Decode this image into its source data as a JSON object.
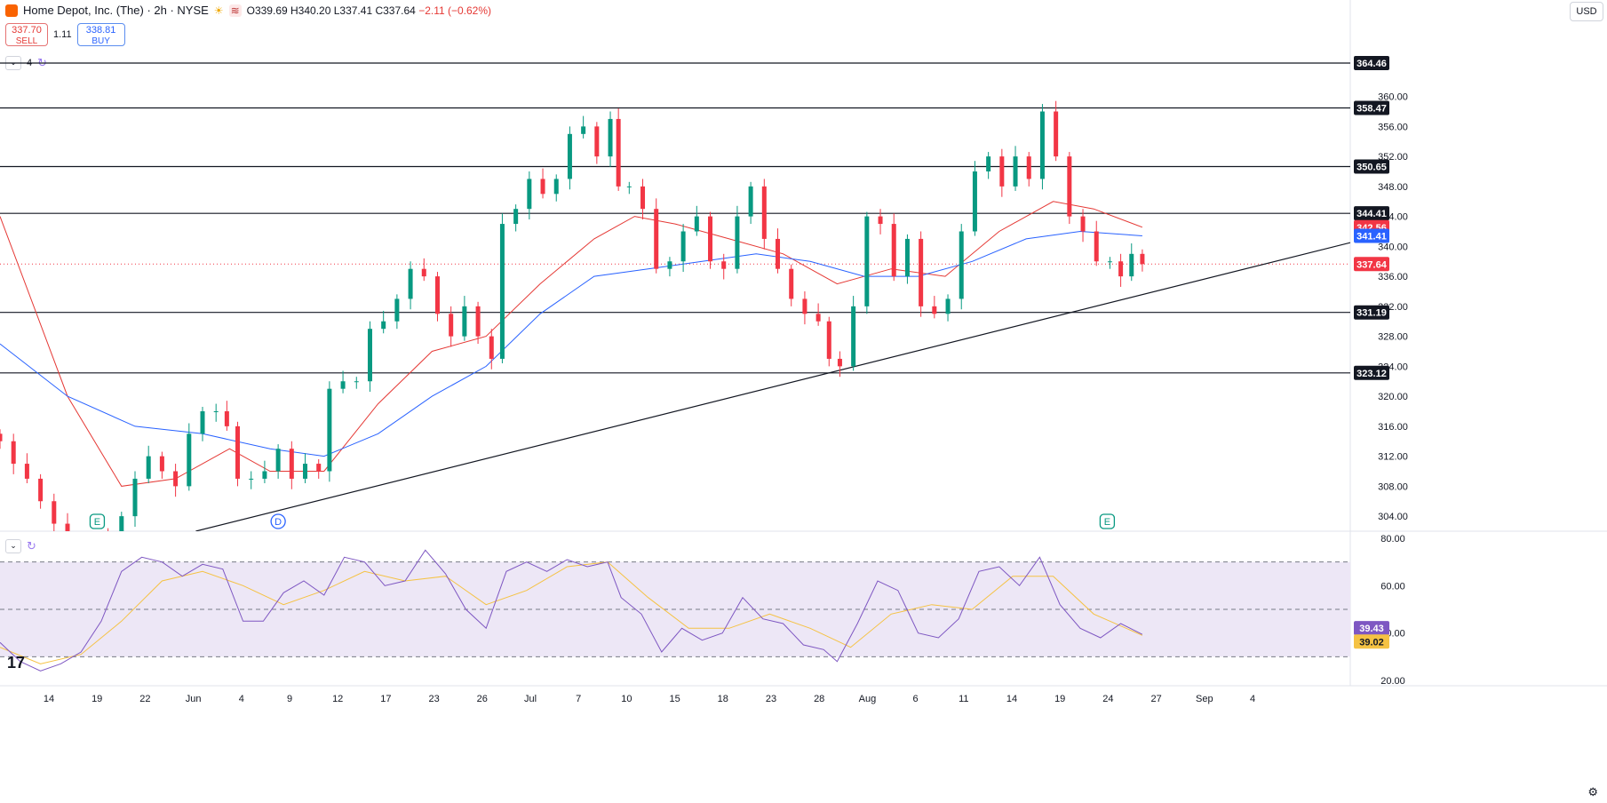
{
  "header": {
    "symbol": "Home Depot, Inc. (The) · 2h · NYSE",
    "open": "O339.69",
    "high": "H340.20",
    "low": "L337.41",
    "close": "C337.64",
    "change": "−2.11 (−0.62%)",
    "sell_price": "337.70",
    "sell_label": "SELL",
    "spread": "1.11",
    "buy_price": "338.81",
    "buy_label": "BUY",
    "indicator_count": "4",
    "currency": "USD"
  },
  "colors": {
    "up": "#089981",
    "down": "#f23645",
    "ma_fast": "#e53935",
    "ma_slow": "#2962ff",
    "rsi": "#7e57c2",
    "rsi_ma": "#f5c243",
    "rsi_band": "#ede7f6"
  },
  "chart_data": [
    {
      "type": "candlestick",
      "title": "",
      "ylim": [
        302,
        366
      ],
      "price_ticks": [
        "360.00",
        "356.00",
        "352.00",
        "348.00",
        "344.00",
        "340.00",
        "336.00",
        "332.00",
        "328.00",
        "324.00",
        "320.00",
        "316.00",
        "312.00",
        "308.00",
        "304.00"
      ],
      "x_labels": [
        "14",
        "19",
        "22",
        "Jun",
        "4",
        "9",
        "12",
        "17",
        "23",
        "26",
        "Jul",
        "7",
        "10",
        "15",
        "18",
        "23",
        "28",
        "Aug",
        "6",
        "11",
        "14",
        "19",
        "24",
        "27",
        "Sep",
        "4"
      ],
      "horizontal_levels": [
        364.46,
        358.47,
        350.65,
        344.41,
        331.19,
        323.12
      ],
      "price_labels": [
        {
          "text": "364.46",
          "value": 364.46,
          "style": "dark"
        },
        {
          "text": "358.47",
          "value": 358.47,
          "style": "dark"
        },
        {
          "text": "350.65",
          "value": 350.65,
          "style": "dark"
        },
        {
          "text": "344.41",
          "value": 344.41,
          "style": "dark"
        },
        {
          "text": "342.56",
          "value": 342.56,
          "style": "red"
        },
        {
          "text": "341.41",
          "value": 341.41,
          "style": "blue"
        },
        {
          "text": "337.64",
          "value": 337.64,
          "style": "red"
        },
        {
          "text": "331.19",
          "value": 331.19,
          "style": "dark"
        },
        {
          "text": "323.12",
          "value": 323.12,
          "style": "dark"
        }
      ],
      "last_price": 337.64,
      "trendline": {
        "start": {
          "t": 0.145,
          "price": 302.0
        },
        "end": {
          "t": 1.0,
          "price": 340.5
        }
      },
      "events": [
        {
          "label": "E",
          "t": 0.072,
          "kind": "earnings"
        },
        {
          "label": "D",
          "t": 0.206,
          "kind": "dividend"
        },
        {
          "label": "E",
          "t": 0.82,
          "kind": "earnings"
        }
      ],
      "series_close": [
        {
          "t": 0.0,
          "p": 314
        },
        {
          "t": 0.01,
          "p": 311
        },
        {
          "t": 0.02,
          "p": 309
        },
        {
          "t": 0.03,
          "p": 306
        },
        {
          "t": 0.04,
          "p": 303
        },
        {
          "t": 0.05,
          "p": 301
        },
        {
          "t": 0.06,
          "p": 300
        },
        {
          "t": 0.07,
          "p": 301
        },
        {
          "t": 0.08,
          "p": 299
        },
        {
          "t": 0.09,
          "p": 304
        },
        {
          "t": 0.1,
          "p": 309
        },
        {
          "t": 0.11,
          "p": 312
        },
        {
          "t": 0.12,
          "p": 310
        },
        {
          "t": 0.13,
          "p": 308
        },
        {
          "t": 0.14,
          "p": 315
        },
        {
          "t": 0.15,
          "p": 318
        },
        {
          "t": 0.16,
          "p": 318
        },
        {
          "t": 0.168,
          "p": 316
        },
        {
          "t": 0.176,
          "p": 309
        },
        {
          "t": 0.186,
          "p": 309
        },
        {
          "t": 0.196,
          "p": 310
        },
        {
          "t": 0.206,
          "p": 313
        },
        {
          "t": 0.216,
          "p": 309
        },
        {
          "t": 0.226,
          "p": 311
        },
        {
          "t": 0.236,
          "p": 310
        },
        {
          "t": 0.244,
          "p": 321
        },
        {
          "t": 0.254,
          "p": 322
        },
        {
          "t": 0.264,
          "p": 322
        },
        {
          "t": 0.274,
          "p": 329
        },
        {
          "t": 0.284,
          "p": 330
        },
        {
          "t": 0.294,
          "p": 333
        },
        {
          "t": 0.304,
          "p": 337
        },
        {
          "t": 0.314,
          "p": 336
        },
        {
          "t": 0.324,
          "p": 331
        },
        {
          "t": 0.334,
          "p": 328
        },
        {
          "t": 0.344,
          "p": 332
        },
        {
          "t": 0.354,
          "p": 328
        },
        {
          "t": 0.364,
          "p": 325
        },
        {
          "t": 0.372,
          "p": 343
        },
        {
          "t": 0.382,
          "p": 345
        },
        {
          "t": 0.392,
          "p": 349
        },
        {
          "t": 0.402,
          "p": 347
        },
        {
          "t": 0.412,
          "p": 349
        },
        {
          "t": 0.422,
          "p": 355
        },
        {
          "t": 0.432,
          "p": 356
        },
        {
          "t": 0.442,
          "p": 352
        },
        {
          "t": 0.452,
          "p": 357
        },
        {
          "t": 0.458,
          "p": 348
        },
        {
          "t": 0.466,
          "p": 348
        },
        {
          "t": 0.476,
          "p": 345
        },
        {
          "t": 0.486,
          "p": 337
        },
        {
          "t": 0.496,
          "p": 338
        },
        {
          "t": 0.506,
          "p": 342
        },
        {
          "t": 0.516,
          "p": 344
        },
        {
          "t": 0.526,
          "p": 338
        },
        {
          "t": 0.536,
          "p": 337
        },
        {
          "t": 0.546,
          "p": 344
        },
        {
          "t": 0.556,
          "p": 348
        },
        {
          "t": 0.566,
          "p": 341
        },
        {
          "t": 0.576,
          "p": 337
        },
        {
          "t": 0.586,
          "p": 333
        },
        {
          "t": 0.596,
          "p": 331
        },
        {
          "t": 0.606,
          "p": 330
        },
        {
          "t": 0.614,
          "p": 325
        },
        {
          "t": 0.622,
          "p": 324
        },
        {
          "t": 0.632,
          "p": 332
        },
        {
          "t": 0.642,
          "p": 344
        },
        {
          "t": 0.652,
          "p": 343
        },
        {
          "t": 0.662,
          "p": 336
        },
        {
          "t": 0.672,
          "p": 341
        },
        {
          "t": 0.682,
          "p": 332
        },
        {
          "t": 0.692,
          "p": 331
        },
        {
          "t": 0.702,
          "p": 333
        },
        {
          "t": 0.712,
          "p": 342
        },
        {
          "t": 0.722,
          "p": 350
        },
        {
          "t": 0.732,
          "p": 352
        },
        {
          "t": 0.742,
          "p": 348
        },
        {
          "t": 0.752,
          "p": 352
        },
        {
          "t": 0.762,
          "p": 349
        },
        {
          "t": 0.772,
          "p": 358
        },
        {
          "t": 0.782,
          "p": 352
        },
        {
          "t": 0.792,
          "p": 344
        },
        {
          "t": 0.802,
          "p": 342
        },
        {
          "t": 0.812,
          "p": 338
        },
        {
          "t": 0.822,
          "p": 338
        },
        {
          "t": 0.83,
          "p": 336
        },
        {
          "t": 0.838,
          "p": 339
        },
        {
          "t": 0.846,
          "p": 337.64
        }
      ],
      "ma_fast": [
        {
          "t": 0.0,
          "p": 344
        },
        {
          "t": 0.05,
          "p": 320
        },
        {
          "t": 0.09,
          "p": 308
        },
        {
          "t": 0.13,
          "p": 309
        },
        {
          "t": 0.17,
          "p": 313
        },
        {
          "t": 0.2,
          "p": 310
        },
        {
          "t": 0.24,
          "p": 310
        },
        {
          "t": 0.28,
          "p": 319
        },
        {
          "t": 0.32,
          "p": 326
        },
        {
          "t": 0.36,
          "p": 328
        },
        {
          "t": 0.4,
          "p": 335
        },
        {
          "t": 0.44,
          "p": 341
        },
        {
          "t": 0.47,
          "p": 344
        },
        {
          "t": 0.5,
          "p": 343
        },
        {
          "t": 0.54,
          "p": 341
        },
        {
          "t": 0.58,
          "p": 339
        },
        {
          "t": 0.62,
          "p": 335
        },
        {
          "t": 0.66,
          "p": 337
        },
        {
          "t": 0.7,
          "p": 336
        },
        {
          "t": 0.74,
          "p": 342
        },
        {
          "t": 0.78,
          "p": 346
        },
        {
          "t": 0.81,
          "p": 345
        },
        {
          "t": 0.846,
          "p": 342.56
        }
      ],
      "ma_slow": [
        {
          "t": 0.0,
          "p": 327
        },
        {
          "t": 0.05,
          "p": 320
        },
        {
          "t": 0.1,
          "p": 316
        },
        {
          "t": 0.15,
          "p": 315
        },
        {
          "t": 0.2,
          "p": 313
        },
        {
          "t": 0.24,
          "p": 312
        },
        {
          "t": 0.28,
          "p": 315
        },
        {
          "t": 0.32,
          "p": 320
        },
        {
          "t": 0.36,
          "p": 324
        },
        {
          "t": 0.4,
          "p": 331
        },
        {
          "t": 0.44,
          "p": 336
        },
        {
          "t": 0.48,
          "p": 337
        },
        {
          "t": 0.52,
          "p": 338
        },
        {
          "t": 0.56,
          "p": 339
        },
        {
          "t": 0.6,
          "p": 338
        },
        {
          "t": 0.64,
          "p": 336
        },
        {
          "t": 0.68,
          "p": 336
        },
        {
          "t": 0.72,
          "p": 338
        },
        {
          "t": 0.76,
          "p": 341
        },
        {
          "t": 0.8,
          "p": 342
        },
        {
          "t": 0.846,
          "p": 341.41
        }
      ]
    },
    {
      "type": "line",
      "title": "",
      "ylim": [
        20,
        80
      ],
      "y_ticks": [
        "80.00",
        "60.00",
        "40.00",
        "20.00"
      ],
      "bands": {
        "upper": 70,
        "middle": 50,
        "lower": 30
      },
      "last_labels": [
        {
          "text": "39.43",
          "value": 39.43,
          "style": "purple"
        },
        {
          "text": "39.02",
          "value": 39.02,
          "style": "yellow"
        }
      ],
      "series": [
        {
          "values": [
            {
              "t": 0.0,
              "v": 36
            },
            {
              "t": 0.015,
              "v": 28
            },
            {
              "t": 0.03,
              "v": 24
            },
            {
              "t": 0.045,
              "v": 27
            },
            {
              "t": 0.06,
              "v": 32
            },
            {
              "t": 0.075,
              "v": 45
            },
            {
              "t": 0.09,
              "v": 66
            },
            {
              "t": 0.105,
              "v": 72
            },
            {
              "t": 0.12,
              "v": 70
            },
            {
              "t": 0.135,
              "v": 64
            },
            {
              "t": 0.15,
              "v": 69
            },
            {
              "t": 0.165,
              "v": 67
            },
            {
              "t": 0.18,
              "v": 45
            },
            {
              "t": 0.195,
              "v": 45
            },
            {
              "t": 0.21,
              "v": 57
            },
            {
              "t": 0.225,
              "v": 62
            },
            {
              "t": 0.24,
              "v": 56
            },
            {
              "t": 0.255,
              "v": 72
            },
            {
              "t": 0.27,
              "v": 70
            },
            {
              "t": 0.285,
              "v": 60
            },
            {
              "t": 0.3,
              "v": 62
            },
            {
              "t": 0.315,
              "v": 75
            },
            {
              "t": 0.33,
              "v": 65
            },
            {
              "t": 0.345,
              "v": 50
            },
            {
              "t": 0.36,
              "v": 42
            },
            {
              "t": 0.375,
              "v": 66
            },
            {
              "t": 0.39,
              "v": 70
            },
            {
              "t": 0.405,
              "v": 66
            },
            {
              "t": 0.42,
              "v": 71
            },
            {
              "t": 0.435,
              "v": 68
            },
            {
              "t": 0.45,
              "v": 70
            },
            {
              "t": 0.46,
              "v": 55
            },
            {
              "t": 0.475,
              "v": 48
            },
            {
              "t": 0.49,
              "v": 32
            },
            {
              "t": 0.505,
              "v": 42
            },
            {
              "t": 0.52,
              "v": 37
            },
            {
              "t": 0.535,
              "v": 40
            },
            {
              "t": 0.55,
              "v": 55
            },
            {
              "t": 0.565,
              "v": 46
            },
            {
              "t": 0.58,
              "v": 44
            },
            {
              "t": 0.595,
              "v": 35
            },
            {
              "t": 0.61,
              "v": 33
            },
            {
              "t": 0.62,
              "v": 28
            },
            {
              "t": 0.635,
              "v": 44
            },
            {
              "t": 0.65,
              "v": 62
            },
            {
              "t": 0.665,
              "v": 58
            },
            {
              "t": 0.68,
              "v": 40
            },
            {
              "t": 0.695,
              "v": 38
            },
            {
              "t": 0.71,
              "v": 46
            },
            {
              "t": 0.725,
              "v": 66
            },
            {
              "t": 0.74,
              "v": 68
            },
            {
              "t": 0.755,
              "v": 60
            },
            {
              "t": 0.77,
              "v": 72
            },
            {
              "t": 0.785,
              "v": 52
            },
            {
              "t": 0.8,
              "v": 42
            },
            {
              "t": 0.815,
              "v": 38
            },
            {
              "t": 0.83,
              "v": 44
            },
            {
              "t": 0.846,
              "v": 39.43
            }
          ]
        },
        {
          "values": [
            {
              "t": 0.0,
              "v": 34
            },
            {
              "t": 0.03,
              "v": 27
            },
            {
              "t": 0.06,
              "v": 31
            },
            {
              "t": 0.09,
              "v": 45
            },
            {
              "t": 0.12,
              "v": 62
            },
            {
              "t": 0.15,
              "v": 66
            },
            {
              "t": 0.18,
              "v": 60
            },
            {
              "t": 0.21,
              "v": 52
            },
            {
              "t": 0.24,
              "v": 58
            },
            {
              "t": 0.27,
              "v": 66
            },
            {
              "t": 0.3,
              "v": 62
            },
            {
              "t": 0.33,
              "v": 64
            },
            {
              "t": 0.36,
              "v": 52
            },
            {
              "t": 0.39,
              "v": 58
            },
            {
              "t": 0.42,
              "v": 68
            },
            {
              "t": 0.45,
              "v": 70
            },
            {
              "t": 0.48,
              "v": 55
            },
            {
              "t": 0.51,
              "v": 42
            },
            {
              "t": 0.54,
              "v": 42
            },
            {
              "t": 0.57,
              "v": 48
            },
            {
              "t": 0.6,
              "v": 42
            },
            {
              "t": 0.63,
              "v": 34
            },
            {
              "t": 0.66,
              "v": 48
            },
            {
              "t": 0.69,
              "v": 52
            },
            {
              "t": 0.72,
              "v": 50
            },
            {
              "t": 0.75,
              "v": 64
            },
            {
              "t": 0.78,
              "v": 64
            },
            {
              "t": 0.81,
              "v": 48
            },
            {
              "t": 0.846,
              "v": 39.02
            }
          ]
        }
      ]
    }
  ],
  "footer": {
    "gear": "gear-icon"
  }
}
